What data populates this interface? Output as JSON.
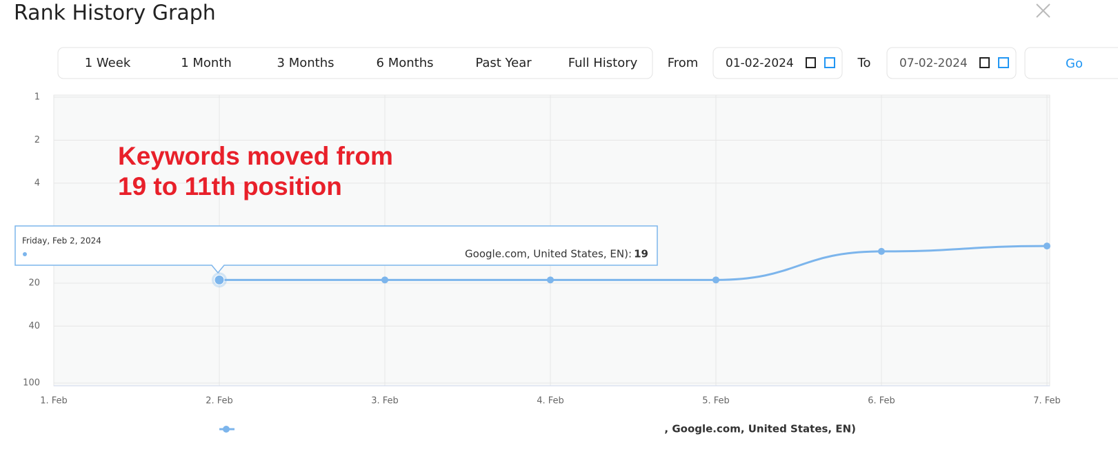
{
  "header": {
    "title": "Rank History Graph"
  },
  "controls": {
    "ranges": [
      "1 Week",
      "1 Month",
      "3 Months",
      "6 Months",
      "Past Year",
      "Full History"
    ],
    "from_label": "From",
    "from_date": "01-02-2024",
    "to_label": "To",
    "to_date": "07-02-2024",
    "go": "Go"
  },
  "chart_data": {
    "type": "line",
    "annotation": [
      "Keywords moved from",
      "19 to 11th position"
    ],
    "categories": [
      "1. Feb",
      "2. Feb",
      "3. Feb",
      "4. Feb",
      "5. Feb",
      "6. Feb",
      "7. Feb"
    ],
    "series": [
      {
        "name": ", Google.com, United States, EN)",
        "color": "#7cb5ec",
        "values": [
          null,
          19,
          19,
          19,
          19,
          12,
          11
        ]
      }
    ],
    "ylim": [
      1,
      100
    ],
    "yticks": [
      1,
      2,
      4,
      20,
      40,
      100
    ],
    "log_scale": true,
    "reversed": true,
    "grid": true,
    "tooltip": {
      "date": "Friday, Feb 2, 2024",
      "text": "Google.com, United States, EN):"
    }
  }
}
